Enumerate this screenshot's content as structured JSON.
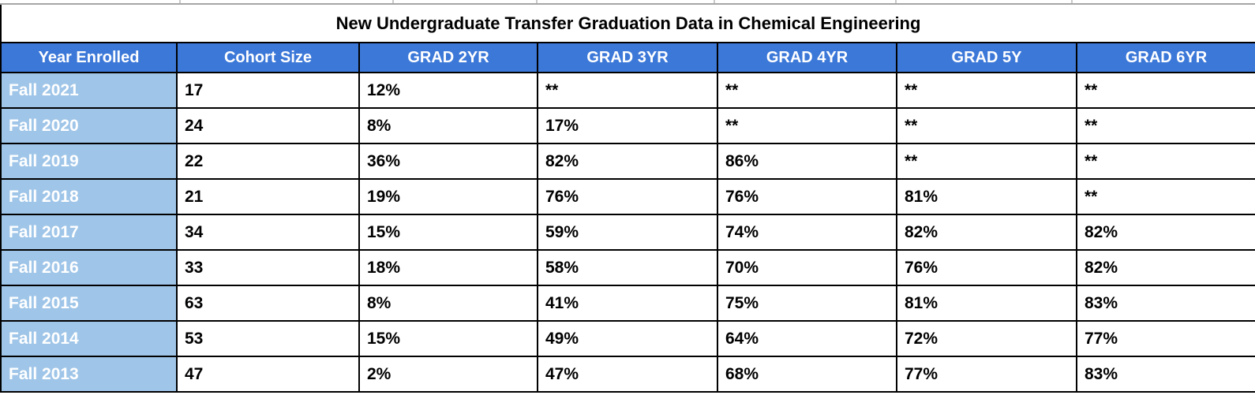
{
  "title": "New Undergraduate Transfer Graduation Data in Chemical Engineering",
  "chart_data": {
    "type": "table",
    "title": "New Undergraduate Transfer Graduation Data in Chemical Engineering",
    "columns": [
      "Year Enrolled",
      "Cohort Size",
      "GRAD 2YR",
      "GRAD 3YR",
      "GRAD 4YR",
      "GRAD 5Y",
      "GRAD 6YR"
    ],
    "rows": [
      [
        "Fall 2021",
        "17",
        "12%",
        "**",
        "**",
        "**",
        "**"
      ],
      [
        "Fall 2020",
        "24",
        "8%",
        "17%",
        "**",
        "**",
        "**"
      ],
      [
        "Fall 2019",
        "22",
        "36%",
        "82%",
        "86%",
        "**",
        "**"
      ],
      [
        "Fall 2018",
        "21",
        "19%",
        "76%",
        "76%",
        "81%",
        "**"
      ],
      [
        "Fall 2017",
        "34",
        "15%",
        "59%",
        "74%",
        "82%",
        "82%"
      ],
      [
        "Fall 2016",
        "33",
        "18%",
        "58%",
        "70%",
        "76%",
        "82%"
      ],
      [
        "Fall 2015",
        "63",
        "8%",
        "41%",
        "75%",
        "81%",
        "83%"
      ],
      [
        "Fall 2014",
        "53",
        "15%",
        "49%",
        "64%",
        "72%",
        "77%"
      ],
      [
        "Fall 2013",
        "47",
        "2%",
        "47%",
        "68%",
        "77%",
        "83%"
      ]
    ],
    "suppressed_marker": "**"
  },
  "colors": {
    "header_bg": "#3c78d8",
    "header_text": "#ffffff",
    "row_label_bg": "#9fc5e8",
    "row_label_text": "#ffffff",
    "cell_text": "#000000",
    "table_border": "#000000",
    "outer_gridline": "#c9c9c9"
  }
}
